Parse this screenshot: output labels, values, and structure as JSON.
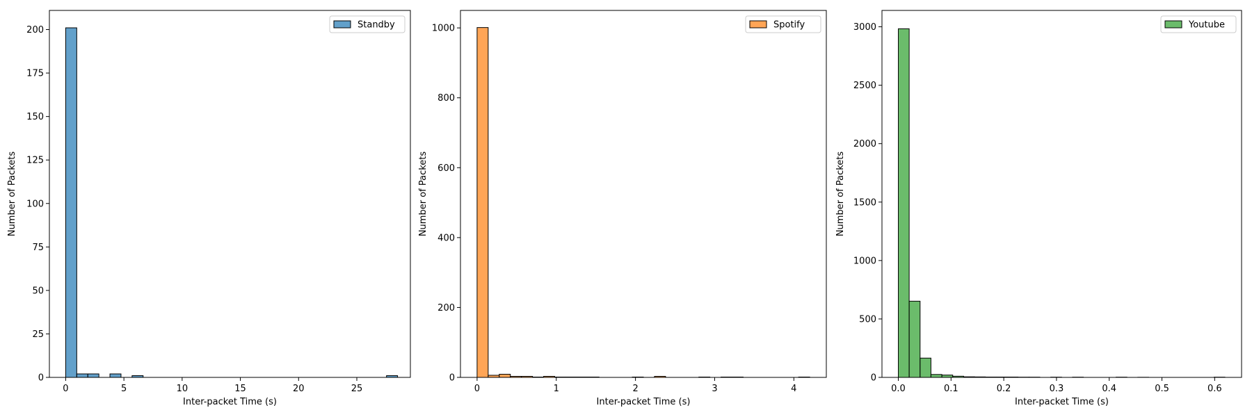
{
  "chart_data": [
    {
      "type": "bar",
      "subtype": "histogram",
      "series_name": "Standby",
      "color": "#1f77b4",
      "edge_color": "#000000",
      "alpha": 0.7,
      "xlabel": "Inter-packet Time (s)",
      "ylabel": "Number of Packets",
      "xlim": [
        -1.4,
        29.6
      ],
      "ylim": [
        0,
        211
      ],
      "xticks": [
        0,
        5,
        10,
        15,
        20,
        25
      ],
      "yticks": [
        0,
        25,
        50,
        75,
        100,
        125,
        150,
        175,
        200
      ],
      "legend_position": "upper right",
      "grid": false,
      "bins": [
        {
          "x0": 0.0,
          "x1": 0.95,
          "count": 201
        },
        {
          "x0": 0.95,
          "x1": 1.9,
          "count": 2
        },
        {
          "x0": 1.9,
          "x1": 2.85,
          "count": 2
        },
        {
          "x0": 3.8,
          "x1": 4.75,
          "count": 2
        },
        {
          "x0": 5.7,
          "x1": 6.65,
          "count": 1
        },
        {
          "x0": 27.55,
          "x1": 28.5,
          "count": 1
        }
      ]
    },
    {
      "type": "bar",
      "subtype": "histogram",
      "series_name": "Spotify",
      "color": "#ff7f0e",
      "edge_color": "#000000",
      "alpha": 0.7,
      "xlabel": "Inter-packet Time (s)",
      "ylabel": "Number of Packets",
      "xlim": [
        -0.21,
        4.41
      ],
      "ylim": [
        0,
        1050
      ],
      "xticks": [
        0,
        1,
        2,
        3,
        4
      ],
      "yticks": [
        0,
        200,
        400,
        600,
        800,
        1000
      ],
      "legend_position": "upper right",
      "grid": false,
      "bins": [
        {
          "x0": 0.0,
          "x1": 0.14,
          "count": 1001
        },
        {
          "x0": 0.14,
          "x1": 0.28,
          "count": 6
        },
        {
          "x0": 0.28,
          "x1": 0.42,
          "count": 9
        },
        {
          "x0": 0.42,
          "x1": 0.56,
          "count": 3
        },
        {
          "x0": 0.56,
          "x1": 0.7,
          "count": 3
        },
        {
          "x0": 0.7,
          "x1": 0.84,
          "count": 1
        },
        {
          "x0": 0.84,
          "x1": 0.98,
          "count": 3
        },
        {
          "x0": 0.98,
          "x1": 1.12,
          "count": 1
        },
        {
          "x0": 1.12,
          "x1": 1.26,
          "count": 1
        },
        {
          "x0": 1.26,
          "x1": 1.4,
          "count": 1
        },
        {
          "x0": 1.4,
          "x1": 1.54,
          "count": 1
        },
        {
          "x0": 1.96,
          "x1": 2.1,
          "count": 1
        },
        {
          "x0": 2.24,
          "x1": 2.38,
          "count": 3
        },
        {
          "x0": 2.8,
          "x1": 2.94,
          "count": 1
        },
        {
          "x0": 3.08,
          "x1": 3.22,
          "count": 1
        },
        {
          "x0": 3.22,
          "x1": 3.36,
          "count": 1
        },
        {
          "x0": 4.06,
          "x1": 4.2,
          "count": 1
        }
      ]
    },
    {
      "type": "bar",
      "subtype": "histogram",
      "series_name": "Youtube",
      "color": "#2ca02c",
      "edge_color": "#000000",
      "alpha": 0.7,
      "xlabel": "Inter-packet Time (s)",
      "ylabel": "Number of Packets",
      "xlim": [
        -0.031,
        0.651
      ],
      "ylim": [
        0,
        3140
      ],
      "xticks": [
        0.0,
        0.1,
        0.2,
        0.3,
        0.4,
        0.5,
        0.6
      ],
      "yticks": [
        0,
        500,
        1000,
        1500,
        2000,
        2500,
        3000
      ],
      "legend_position": "upper right",
      "grid": false,
      "bins": [
        {
          "x0": 0.0,
          "x1": 0.0206,
          "count": 2983
        },
        {
          "x0": 0.0206,
          "x1": 0.0413,
          "count": 652
        },
        {
          "x0": 0.0413,
          "x1": 0.0619,
          "count": 165
        },
        {
          "x0": 0.0619,
          "x1": 0.0826,
          "count": 25
        },
        {
          "x0": 0.0826,
          "x1": 0.1032,
          "count": 20
        },
        {
          "x0": 0.1032,
          "x1": 0.1239,
          "count": 10
        },
        {
          "x0": 0.1239,
          "x1": 0.1445,
          "count": 5
        },
        {
          "x0": 0.1445,
          "x1": 0.1652,
          "count": 4
        },
        {
          "x0": 0.1652,
          "x1": 0.1858,
          "count": 3
        },
        {
          "x0": 0.1858,
          "x1": 0.2065,
          "count": 3
        },
        {
          "x0": 0.2065,
          "x1": 0.2271,
          "count": 3
        },
        {
          "x0": 0.2271,
          "x1": 0.2478,
          "count": 2
        },
        {
          "x0": 0.2478,
          "x1": 0.2684,
          "count": 2
        },
        {
          "x0": 0.2891,
          "x1": 0.3097,
          "count": 2
        },
        {
          "x0": 0.3304,
          "x1": 0.351,
          "count": 2
        },
        {
          "x0": 0.4129,
          "x1": 0.4336,
          "count": 2
        },
        {
          "x0": 0.4542,
          "x1": 0.4749,
          "count": 1
        },
        {
          "x0": 0.5988,
          "x1": 0.6194,
          "count": 2
        }
      ]
    }
  ]
}
